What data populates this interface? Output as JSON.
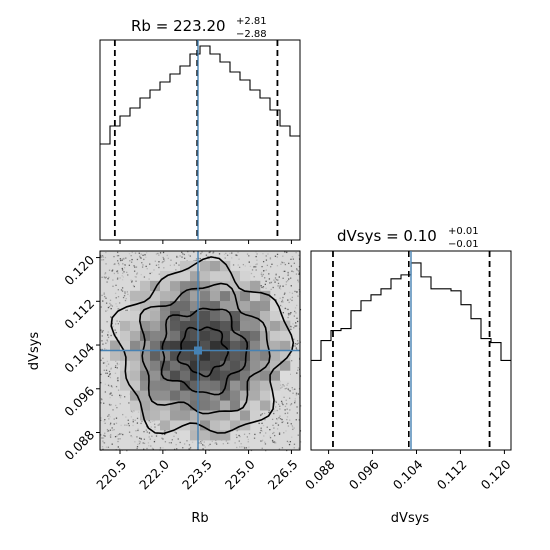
{
  "chart_data": {
    "type": "corner",
    "parameters": [
      "Rb",
      "dVsys"
    ],
    "axis_labels": {
      "x_bottom_left": "Rb",
      "x_bottom_right": "dVsys",
      "y_left": "dVsys"
    },
    "colors": {
      "truth": "#4682b4",
      "hist": "#000000",
      "quantile": "#000000"
    },
    "hist_rb": {
      "title_name": "Rb",
      "title_value": "223.20",
      "title_plus": "+2.81",
      "title_minus": "−2.88",
      "xlim": [
        219.8,
        226.8
      ],
      "median": 223.2,
      "truth": 223.23,
      "quantiles": [
        220.32,
        226.01
      ],
      "bin_edges": [
        219.8,
        220.15,
        220.5,
        220.85,
        221.2,
        221.55,
        221.9,
        222.25,
        222.6,
        222.95,
        223.3,
        223.65,
        224.0,
        224.35,
        224.7,
        225.05,
        225.4,
        225.75,
        226.1,
        226.45,
        226.8
      ],
      "counts": [
        0.48,
        0.57,
        0.62,
        0.66,
        0.71,
        0.75,
        0.79,
        0.83,
        0.87,
        0.93,
        0.97,
        0.93,
        0.89,
        0.84,
        0.8,
        0.75,
        0.71,
        0.65,
        0.57,
        0.52
      ],
      "ymax": 1.0
    },
    "hist_dvsys": {
      "title_name": "dVsys",
      "title_value": "0.10",
      "title_plus": "+0.01",
      "title_minus": "−0.01",
      "xlim": [
        0.0848,
        0.1212
      ],
      "median": 0.1026,
      "truth": 0.103,
      "quantiles": [
        0.0888,
        0.1173
      ],
      "bin_edges": [
        0.0848,
        0.08662,
        0.08844,
        0.09026,
        0.09208,
        0.0939,
        0.09572,
        0.09754,
        0.09936,
        0.10118,
        0.103,
        0.10482,
        0.10664,
        0.10846,
        0.11028,
        0.1121,
        0.11392,
        0.11574,
        0.11756,
        0.11938,
        0.1212
      ],
      "counts": [
        0.45,
        0.55,
        0.6,
        0.61,
        0.7,
        0.75,
        0.78,
        0.81,
        0.86,
        0.88,
        0.94,
        0.87,
        0.81,
        0.81,
        0.8,
        0.73,
        0.66,
        0.56,
        0.54,
        0.45
      ],
      "ymax": 1.0
    },
    "scatter_2d": {
      "xlim": [
        219.8,
        226.8
      ],
      "ylim": [
        0.0848,
        0.1212
      ],
      "truth_x": 223.23,
      "truth_y": 0.103,
      "contour_levels": [
        0.0,
        0.5,
        1.0,
        1.5,
        2.0
      ]
    },
    "x_ticks_rb": [
      "220.5",
      "222.0",
      "223.5",
      "225.0",
      "226.5"
    ],
    "x_tick_values_rb": [
      220.5,
      222.0,
      223.5,
      225.0,
      226.5
    ],
    "y_ticks_dvsys": [
      "0.088",
      "0.096",
      "0.104",
      "0.112",
      "0.120"
    ],
    "y_tick_values_dvsys": [
      0.088,
      0.096,
      0.104,
      0.112,
      0.12
    ],
    "x_ticks_dvsys": [
      "0.088",
      "0.096",
      "0.104",
      "0.112",
      "0.120"
    ],
    "x_tick_values_dvsys": [
      0.088,
      0.096,
      0.104,
      0.112,
      0.12
    ]
  }
}
